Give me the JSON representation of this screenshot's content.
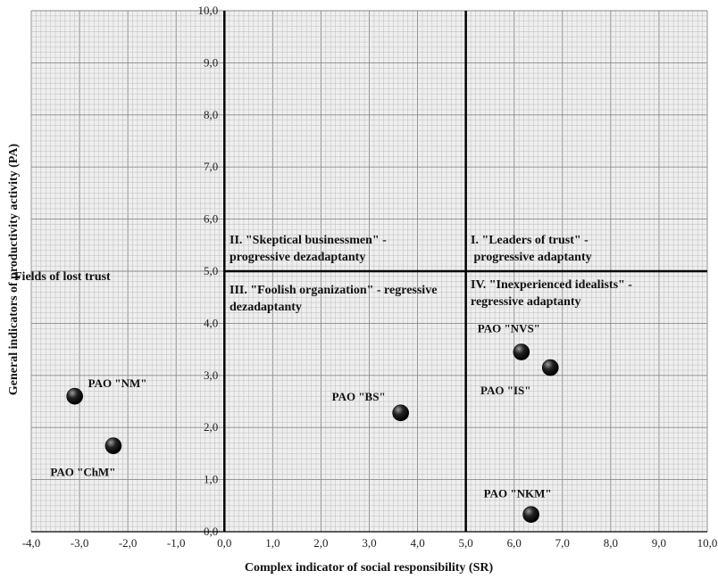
{
  "chart_data": {
    "type": "scatter",
    "title": "",
    "xlabel": "Complex indicator of social responsibility (SR)",
    "ylabel": "General indicators of productivity activity (PA)",
    "xlim": [
      -4,
      10
    ],
    "ylim": [
      0,
      10
    ],
    "x_ticks": [
      "-4,0",
      "-3,0",
      "-2,0",
      "-1,0",
      "0,0",
      "1,0",
      "2,0",
      "3,0",
      "4,0",
      "5,0",
      "6,0",
      "7,0",
      "8,0",
      "9,0",
      "10,0"
    ],
    "y_ticks": [
      "0,0",
      "1,0",
      "2,0",
      "3,0",
      "4,0",
      "5,0",
      "6,0",
      "7,0",
      "8,0",
      "9,0",
      "10,0"
    ],
    "grid": true,
    "quadrant_lines": {
      "x": 5,
      "y": 5
    },
    "points": [
      {
        "label": "PAO \"NM\"",
        "x": -3.1,
        "y": 2.6
      },
      {
        "label": "PAO \"ChM\"",
        "x": -2.3,
        "y": 1.65
      },
      {
        "label": "PAO \"BS\"",
        "x": 3.65,
        "y": 2.28
      },
      {
        "label": "PAO \"NVS\"",
        "x": 6.15,
        "y": 3.45
      },
      {
        "label": "PAO \"IS\"",
        "x": 6.75,
        "y": 3.15
      },
      {
        "label": "PAO \"NKM\"",
        "x": 6.35,
        "y": 0.33
      }
    ],
    "annotations": [
      {
        "lines": [
          "Fields of lost trust"
        ]
      },
      {
        "lines": [
          "II. \"Skeptical businessmen\" -",
          "progressive dezadaptanty"
        ]
      },
      {
        "lines": [
          "III. \"Foolish organization\" - regressive",
          "dezadaptanty"
        ]
      },
      {
        "lines": [
          "I. \"Leaders of trust\" -",
          " progressive adaptanty"
        ]
      },
      {
        "lines": [
          "IV. \"Inexperienced idealists\" -",
          "regressive adaptanty"
        ]
      }
    ]
  }
}
